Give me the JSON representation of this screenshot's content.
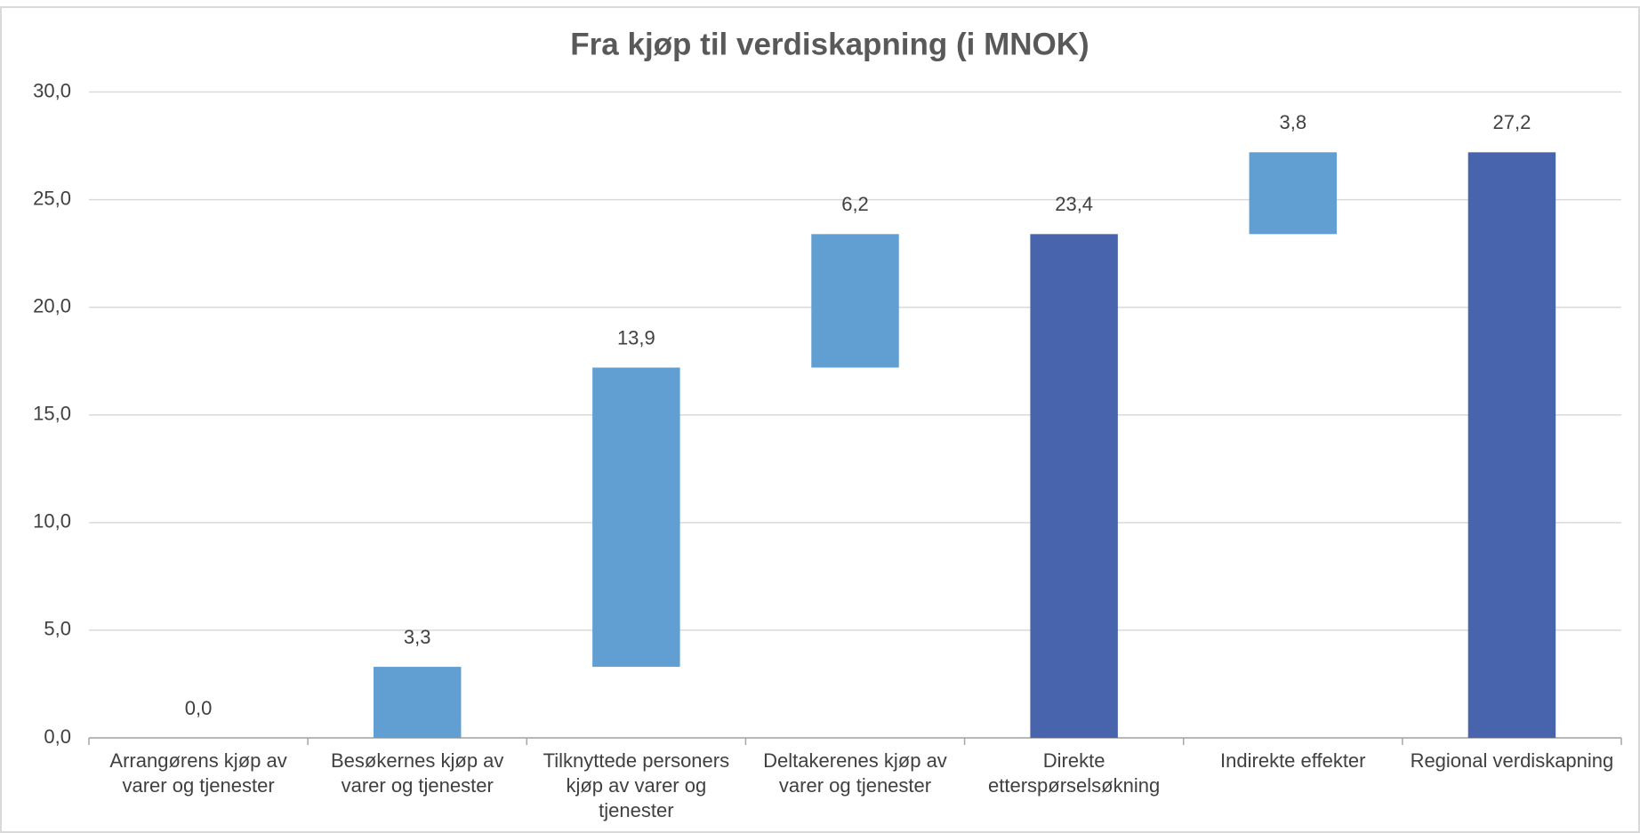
{
  "chart_data": {
    "type": "waterfall",
    "title": "Fra kjøp til verdiskapning (i MNOK)",
    "categories": [
      "Arrangørens kjøp av varer og tjenester",
      "Besøkernes kjøp av varer og tjenester",
      "Tilknyttede personers kjøp av varer og tjenester",
      "Deltakerenes kjøp av varer og tjenester",
      "Direkte etterspørselsøkning",
      "Indirekte effekter",
      "Regional verdiskapning"
    ],
    "values": [
      0.0,
      3.3,
      13.9,
      6.2,
      23.4,
      3.8,
      27.2
    ],
    "value_labels": [
      "0,0",
      "3,3",
      "13,9",
      "6,2",
      "23,4",
      "3,8",
      "27,2"
    ],
    "total": [
      false,
      false,
      false,
      false,
      true,
      false,
      true
    ],
    "colors": [
      "#619fd2",
      "#619fd2",
      "#619fd2",
      "#619fd2",
      "#4864ad",
      "#619fd2",
      "#4864ad"
    ],
    "ylim": [
      0,
      30
    ],
    "yticks": [
      {
        "value": 0,
        "label": "0,0"
      },
      {
        "value": 5,
        "label": "5,0"
      },
      {
        "value": 10,
        "label": "10,0"
      },
      {
        "value": 15,
        "label": "15,0"
      },
      {
        "value": 20,
        "label": "20,0"
      },
      {
        "value": 25,
        "label": "25,0"
      },
      {
        "value": 30,
        "label": "30,0"
      }
    ],
    "grid": true
  }
}
